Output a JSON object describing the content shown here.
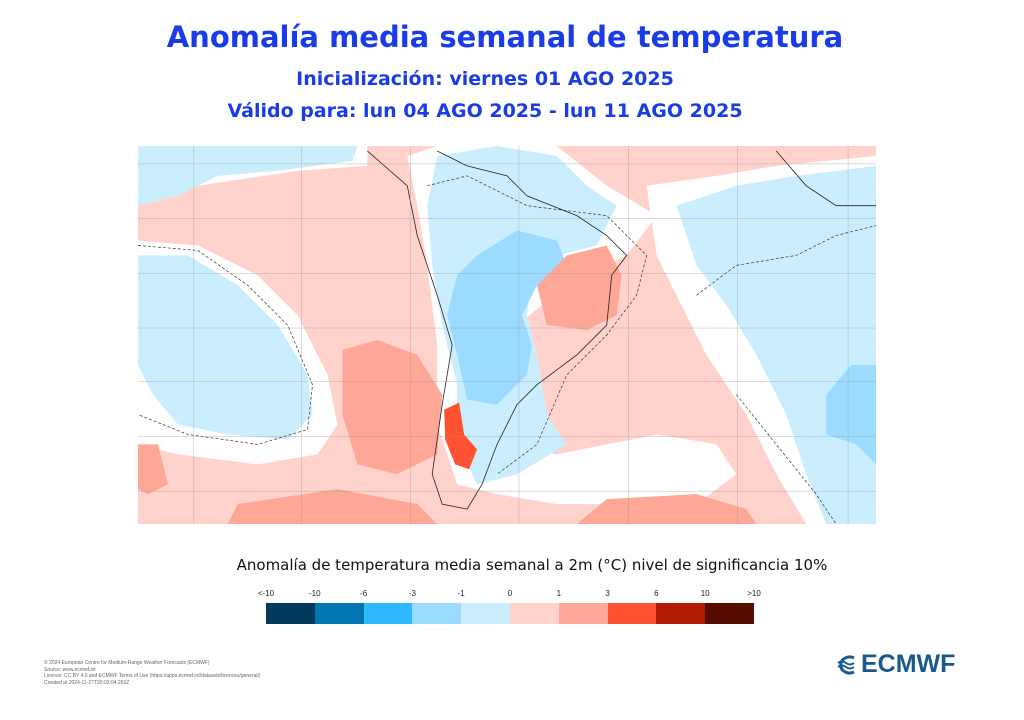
{
  "title": "Anomalía  media semanal de temperatura",
  "initialization": "Inicialización: viernes 01 AGO 2025",
  "valid": "Válido para: lun 04 AGO 2025 - lun 11 AGO 2025",
  "colorbar": {
    "title": "Anomalía de temperatura media semanal a 2m (°C) nivel de significancia 10%",
    "ticks": [
      "<-10",
      "-10",
      "-6",
      "-3",
      "-1",
      "0",
      "1",
      "3",
      "6",
      "10",
      ">10"
    ],
    "colors": [
      "#003a5a",
      "#0075b0",
      "#2db8ff",
      "#9adbff",
      "#cbeeff",
      "#ffd2cc",
      "#ffa797",
      "#ff5233",
      "#b01a00",
      "#580c00"
    ]
  },
  "footer": [
    "© 2024 European Centre for Medium-Range Weather Forecasts (ECMWF)",
    "Source: www.ecmwf.int",
    "Licence: CC BY 4.0 and ECMWF Terms of Use (https://apps.ecmwf.int/datasets/licences/general/)",
    "Created at 2024-11-27T20:03:04.263Z"
  ],
  "logo": "ECMWF"
}
